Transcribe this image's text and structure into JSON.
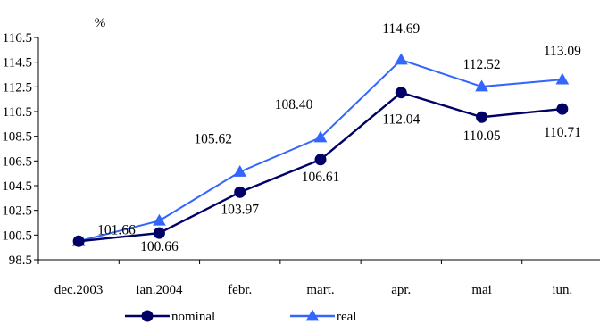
{
  "chart_data": {
    "type": "line",
    "title": "",
    "xlabel": "",
    "ylabel": "%",
    "categories": [
      "dec.2003",
      "ian.2004",
      "febr.",
      "mart.",
      "apr.",
      "mai",
      "iun."
    ],
    "ylim": [
      98.5,
      116.5
    ],
    "yticks": [
      "98.5",
      "100.5",
      "102.5",
      "104.5",
      "106.5",
      "108.5",
      "110.5",
      "112.5",
      "114.5",
      "116.5"
    ],
    "grid": false,
    "legend": "bottom",
    "series": [
      {
        "name": "nominal",
        "color": "#000066",
        "marker": "circle",
        "values": [
          100.0,
          100.66,
          103.97,
          106.61,
          112.04,
          110.05,
          110.71
        ],
        "labels": [
          "",
          "100.66",
          "103.97",
          "106.61",
          "112.04",
          "110.05",
          "110.71"
        ]
      },
      {
        "name": "real",
        "color": "#3366ff",
        "marker": "triangle",
        "values": [
          100.0,
          101.66,
          105.62,
          108.4,
          114.69,
          112.52,
          113.09
        ],
        "labels": [
          "",
          "101.66",
          "105.62",
          "108.40",
          "114.69",
          "112.52",
          "113.09"
        ]
      }
    ]
  }
}
